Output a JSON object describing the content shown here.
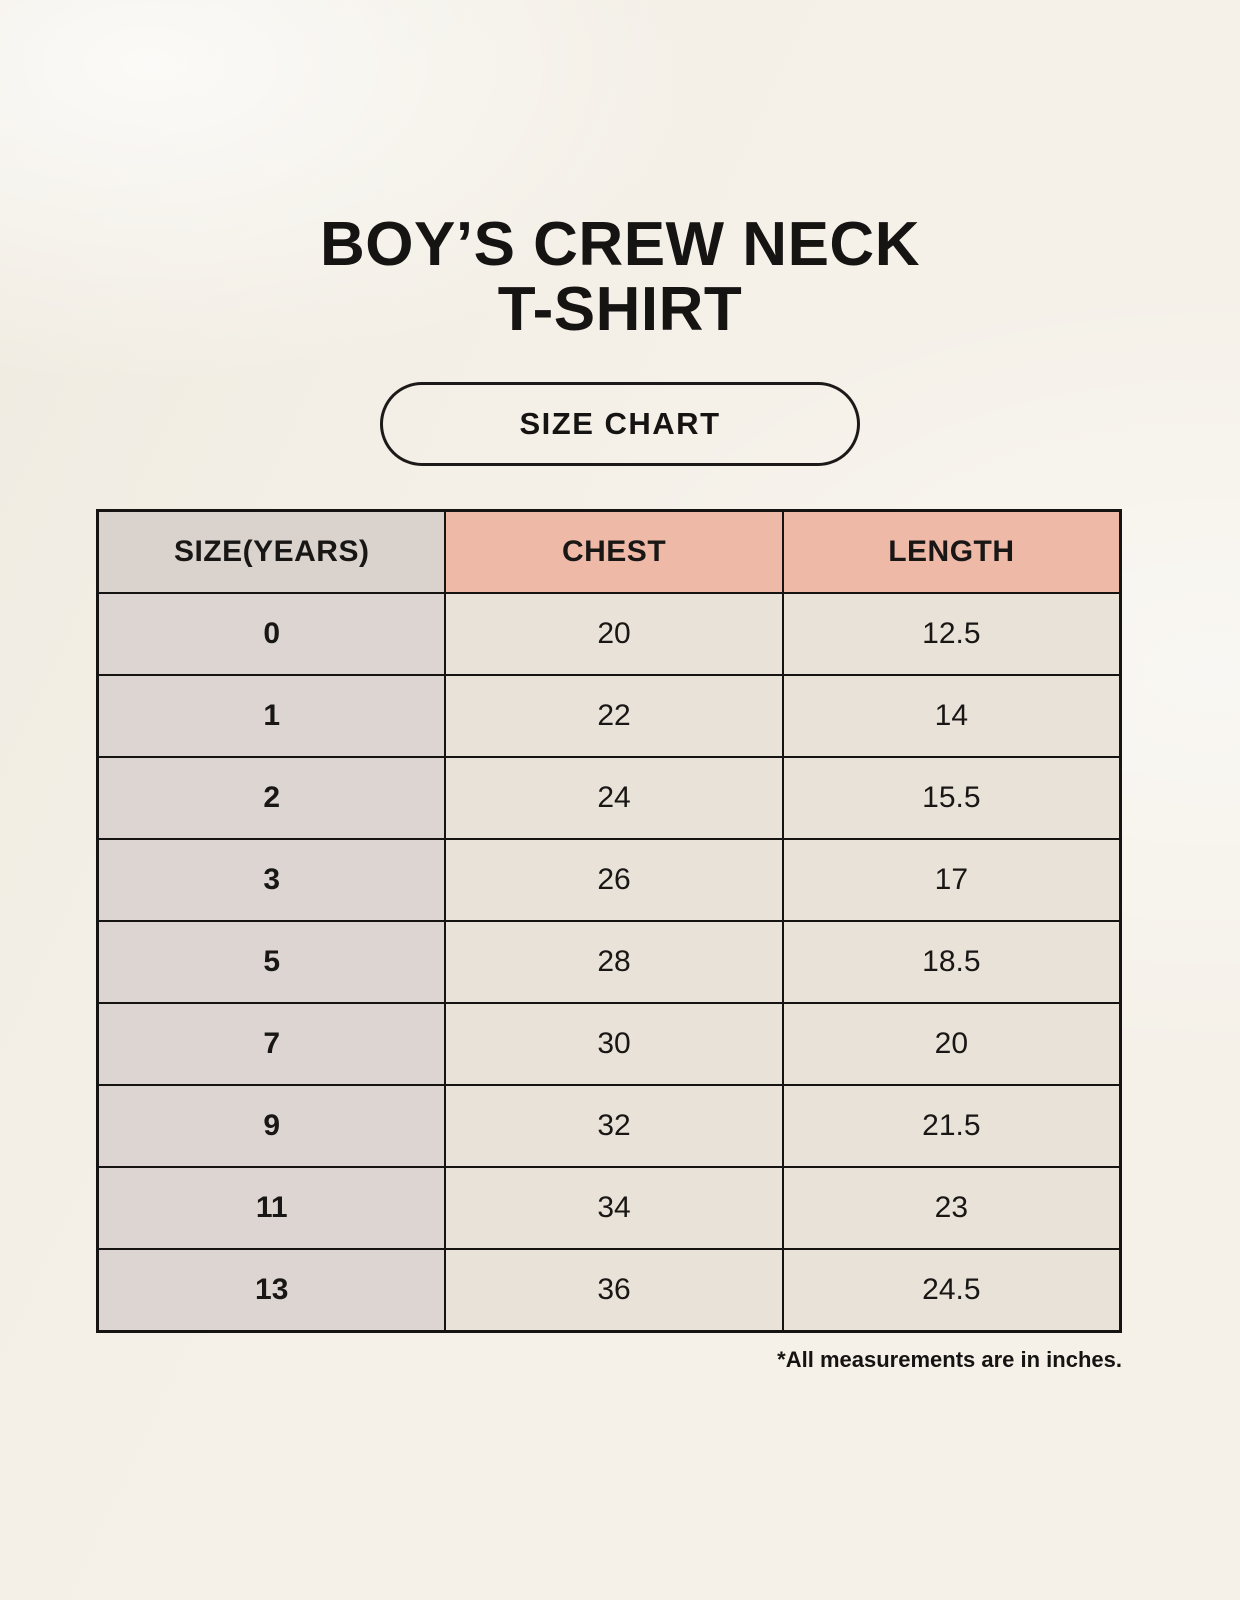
{
  "page": {
    "title_line1": "BOY’S CREW NECK",
    "title_line2": "T-SHIRT",
    "badge_label": "SIZE CHART",
    "footnote": "*All measurements are in inches."
  },
  "colors": {
    "background": "#f5f1e9",
    "header_pink": "#efb9a8",
    "header_gray": "#d9d2cd",
    "row_label_gray": "#dcd5d2",
    "cell_cream": "#e9e2d8",
    "border_black": "#161412"
  },
  "chart_data": {
    "type": "table",
    "title": "BOY’S CREW NECK T-SHIRT — SIZE CHART",
    "columns": [
      "SIZE(YEARS)",
      "CHEST",
      "LENGTH"
    ],
    "rows": [
      [
        "0",
        "20",
        "12.5"
      ],
      [
        "1",
        "22",
        "14"
      ],
      [
        "2",
        "24",
        "15.5"
      ],
      [
        "3",
        "26",
        "17"
      ],
      [
        "5",
        "28",
        "18.5"
      ],
      [
        "7",
        "30",
        "20"
      ],
      [
        "9",
        "32",
        "21.5"
      ],
      [
        "11",
        "34",
        "23"
      ],
      [
        "13",
        "36",
        "24.5"
      ]
    ],
    "units": "inches",
    "layout": "header row shaded; size column gray, chest/length headers salmon pink"
  }
}
